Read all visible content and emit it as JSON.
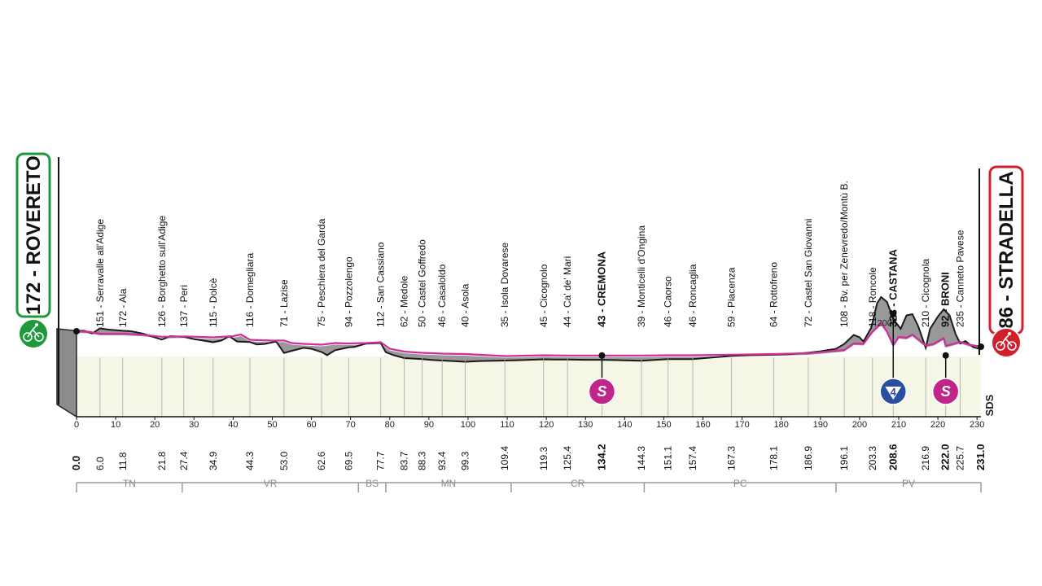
{
  "chart_data": {
    "type": "area",
    "start": {
      "name": "ROVERETO",
      "altitude": "172"
    },
    "finish": {
      "name": "STRADELLA",
      "altitude": "86"
    },
    "xlim": [
      0,
      231
    ],
    "x_ticks": [
      "0",
      "10",
      "20",
      "30",
      "40",
      "50",
      "60",
      "70",
      "80",
      "90",
      "100",
      "110",
      "120",
      "130",
      "140",
      "150",
      "160",
      "170",
      "180",
      "190",
      "200",
      "210",
      "220",
      "230"
    ],
    "elevation_label": "200",
    "profile_ridge": [
      [
        0,
        162
      ],
      [
        2,
        162
      ],
      [
        4,
        151
      ],
      [
        6,
        172
      ],
      [
        8,
        167
      ],
      [
        11.8,
        162
      ],
      [
        14,
        160
      ],
      [
        17,
        150
      ],
      [
        21.8,
        126
      ],
      [
        24,
        140
      ],
      [
        27.4,
        137
      ],
      [
        30,
        128
      ],
      [
        34.9,
        115
      ],
      [
        37,
        122
      ],
      [
        39,
        140
      ],
      [
        41,
        118
      ],
      [
        44.3,
        116
      ],
      [
        46,
        106
      ],
      [
        48,
        108
      ],
      [
        51,
        118
      ],
      [
        53,
        71
      ],
      [
        55,
        80
      ],
      [
        58,
        92
      ],
      [
        60,
        88
      ],
      [
        62.6,
        75
      ],
      [
        64,
        62
      ],
      [
        66,
        82
      ],
      [
        69.5,
        94
      ],
      [
        71,
        96
      ],
      [
        74,
        110
      ],
      [
        77.7,
        112
      ],
      [
        79,
        74
      ],
      [
        81,
        62
      ],
      [
        83.7,
        50
      ],
      [
        86,
        48
      ],
      [
        88.3,
        46
      ],
      [
        91,
        42
      ],
      [
        93.4,
        40
      ],
      [
        96,
        38
      ],
      [
        99.3,
        35
      ],
      [
        103,
        38
      ],
      [
        109.4,
        40
      ],
      [
        114,
        42
      ],
      [
        119.3,
        45
      ],
      [
        122,
        44
      ],
      [
        125.4,
        44
      ],
      [
        130,
        43
      ],
      [
        134.2,
        43
      ],
      [
        140,
        41
      ],
      [
        144.3,
        39
      ],
      [
        148,
        43
      ],
      [
        151.1,
        46
      ],
      [
        154,
        46
      ],
      [
        157.4,
        46
      ],
      [
        162,
        52
      ],
      [
        167.3,
        59
      ],
      [
        172,
        62
      ],
      [
        178.1,
        64
      ],
      [
        182,
        66
      ],
      [
        186.9,
        72
      ],
      [
        190,
        78
      ],
      [
        194,
        88
      ],
      [
        196.1,
        108
      ],
      [
        198.5,
        145
      ],
      [
        200,
        135
      ],
      [
        201,
        118
      ],
      [
        203,
        175
      ],
      [
        204.5,
        275
      ],
      [
        205.5,
        300
      ],
      [
        207,
        280
      ],
      [
        208.6,
        210
      ],
      [
        210.5,
        170
      ],
      [
        212,
        225
      ],
      [
        213.5,
        230
      ],
      [
        215,
        180
      ],
      [
        216.9,
        92
      ],
      [
        218,
        170
      ],
      [
        220,
        220
      ],
      [
        221.5,
        250
      ],
      [
        223,
        225
      ],
      [
        224.5,
        150
      ],
      [
        225.7,
        110
      ],
      [
        227,
        120
      ],
      [
        229,
        95
      ],
      [
        231,
        86
      ]
    ],
    "road_line": [
      [
        0,
        162
      ],
      [
        3,
        160
      ],
      [
        6,
        150
      ],
      [
        11.8,
        150
      ],
      [
        17,
        145
      ],
      [
        21.8,
        135
      ],
      [
        27.4,
        137
      ],
      [
        34.9,
        132
      ],
      [
        40,
        138
      ],
      [
        42,
        146
      ],
      [
        44.3,
        120
      ],
      [
        47,
        118
      ],
      [
        50,
        116
      ],
      [
        53,
        117
      ],
      [
        55,
        104
      ],
      [
        58,
        100
      ],
      [
        62.6,
        96
      ],
      [
        66,
        104
      ],
      [
        69.5,
        102
      ],
      [
        74,
        104
      ],
      [
        77.7,
        108
      ],
      [
        80,
        76
      ],
      [
        83.7,
        62
      ],
      [
        88.3,
        56
      ],
      [
        93.4,
        52
      ],
      [
        99.3,
        50
      ],
      [
        109.4,
        40
      ],
      [
        119.3,
        44
      ],
      [
        125.4,
        43
      ],
      [
        134.2,
        43
      ],
      [
        144.3,
        43
      ],
      [
        151.1,
        44
      ],
      [
        157.4,
        44
      ],
      [
        167.3,
        47
      ],
      [
        178.1,
        50
      ],
      [
        186.9,
        54
      ],
      [
        196.1,
        70
      ],
      [
        198.5,
        102
      ],
      [
        201,
        100
      ],
      [
        203.3,
        160
      ],
      [
        205.5,
        200
      ],
      [
        207,
        160
      ],
      [
        208.6,
        92
      ],
      [
        210,
        134
      ],
      [
        212,
        130
      ],
      [
        213.5,
        145
      ],
      [
        216.9,
        92
      ],
      [
        219,
        100
      ],
      [
        221.5,
        128
      ],
      [
        222,
        90
      ],
      [
        224,
        100
      ],
      [
        225.7,
        110
      ],
      [
        228,
        96
      ],
      [
        231,
        86
      ]
    ],
    "waypoints": [
      {
        "km": "0.0",
        "alt": "",
        "name": "",
        "x": 0,
        "bold": true
      },
      {
        "km": "6.0",
        "alt": "151",
        "name": "Serravalle all'Adige",
        "x": 6.0,
        "bold": false
      },
      {
        "km": "11.8",
        "alt": "172",
        "name": "Ala",
        "x": 11.8,
        "bold": false
      },
      {
        "km": "21.8",
        "alt": "126",
        "name": "Borghetto sull'Adige",
        "x": 21.8,
        "bold": false
      },
      {
        "km": "27.4",
        "alt": "137",
        "name": "Peri",
        "x": 27.4,
        "bold": false
      },
      {
        "km": "34.9",
        "alt": "115",
        "name": "Dolcè",
        "x": 34.9,
        "bold": false
      },
      {
        "km": "44.3",
        "alt": "116",
        "name": "Domegliara",
        "x": 44.3,
        "bold": false
      },
      {
        "km": "53.0",
        "alt": "71",
        "name": "Lazise",
        "x": 53.0,
        "bold": false
      },
      {
        "km": "62.6",
        "alt": "75",
        "name": "Peschiera del Garda",
        "x": 62.6,
        "bold": false
      },
      {
        "km": "69.5",
        "alt": "94",
        "name": "Pozzolengo",
        "x": 69.5,
        "bold": false
      },
      {
        "km": "77.7",
        "alt": "112",
        "name": "San Cassiano",
        "x": 77.7,
        "bold": false
      },
      {
        "km": "83.7",
        "alt": "62",
        "name": "Medole",
        "x": 83.7,
        "bold": false
      },
      {
        "km": "88.3",
        "alt": "50",
        "name": "Castel Goffredo",
        "x": 88.3,
        "bold": false
      },
      {
        "km": "93.4",
        "alt": "46",
        "name": "Casaloldo",
        "x": 93.4,
        "bold": false
      },
      {
        "km": "99.3",
        "alt": "40",
        "name": "Asola",
        "x": 99.3,
        "bold": false
      },
      {
        "km": "109.4",
        "alt": "35",
        "name": "Isola Dovarese",
        "x": 109.4,
        "bold": false
      },
      {
        "km": "119.3",
        "alt": "45",
        "name": "Cicognolo",
        "x": 119.3,
        "bold": false
      },
      {
        "km": "125.4",
        "alt": "44",
        "name": "Ca' de' Mari",
        "x": 125.4,
        "bold": false
      },
      {
        "km": "134.2",
        "alt": "43",
        "name": "CREMONA",
        "x": 134.2,
        "bold": true
      },
      {
        "km": "144.3",
        "alt": "39",
        "name": "Monticelli d'Ongina",
        "x": 144.3,
        "bold": false
      },
      {
        "km": "151.1",
        "alt": "46",
        "name": "Caorso",
        "x": 151.1,
        "bold": false
      },
      {
        "km": "157.4",
        "alt": "46",
        "name": "Roncaglia",
        "x": 157.4,
        "bold": false
      },
      {
        "km": "167.3",
        "alt": "59",
        "name": "Piacenza",
        "x": 167.3,
        "bold": false
      },
      {
        "km": "178.1",
        "alt": "64",
        "name": "Rottofreno",
        "x": 178.1,
        "bold": false
      },
      {
        "km": "186.9",
        "alt": "72",
        "name": "Castel San Giovanni",
        "x": 186.9,
        "bold": false
      },
      {
        "km": "196.1",
        "alt": "108",
        "name": "Bv. per Zenevredo/Montù B.",
        "x": 196.1,
        "bold": false
      },
      {
        "km": "203.3",
        "alt": "118",
        "name": "Roncole",
        "x": 203.3,
        "bold": false
      },
      {
        "km": "208.6",
        "alt": "328",
        "name": "CASTANA",
        "x": 208.6,
        "bold": true
      },
      {
        "km": "216.9",
        "alt": "210",
        "name": "Cicognola",
        "x": 216.9,
        "bold": false
      },
      {
        "km": "222.0",
        "alt": "92",
        "name": "BRONI",
        "x": 222.0,
        "bold": true
      },
      {
        "km": "225.7",
        "alt": "235",
        "name": "Canneto Pavese",
        "x": 225.7,
        "bold": false
      },
      {
        "km": "231.0",
        "alt": "",
        "name": "",
        "x": 231.0,
        "bold": true
      }
    ],
    "provinces": [
      {
        "label": "TN",
        "from": 0,
        "to": 27
      },
      {
        "label": "VR",
        "from": 27,
        "to": 72
      },
      {
        "label": "BS",
        "from": 72,
        "to": 79
      },
      {
        "label": "MN",
        "from": 79,
        "to": 111
      },
      {
        "label": "CR",
        "from": 111,
        "to": 145
      },
      {
        "label": "PC",
        "from": 145,
        "to": 194
      },
      {
        "label": "PV",
        "from": 194,
        "to": 231
      }
    ],
    "markers": [
      {
        "type": "sprint",
        "label": "S",
        "km": 134.2
      },
      {
        "type": "kom",
        "label": "4",
        "km": 208.6
      },
      {
        "type": "sprint",
        "label": "S",
        "km": 222.0
      }
    ],
    "logo": "SDS",
    "colors": {
      "profile_fill": "#999999",
      "plain_fill": "#f5f6e6",
      "road_line": "#d02c9a",
      "sprint": "#c0268a",
      "kom": "#2a4fa0",
      "start_badge": "#1f9a3a",
      "finish_badge": "#d2202b"
    },
    "icons": [
      "start-cyclist-icon",
      "finish-cyclist-icon"
    ]
  }
}
